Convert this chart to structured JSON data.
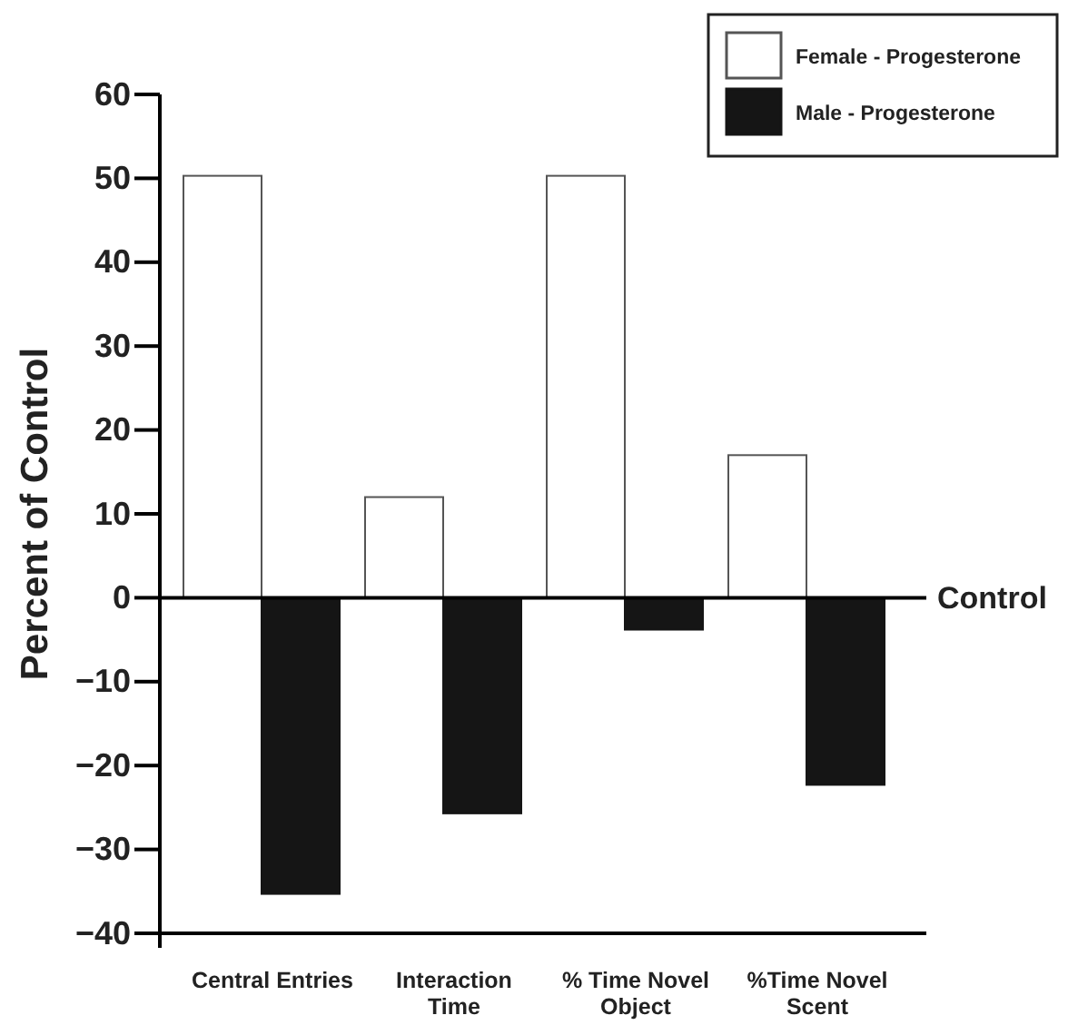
{
  "chart_data": {
    "type": "bar",
    "ylabel": "Percent of Control",
    "categories": [
      "Central Entries",
      "Interaction Time",
      "% Time Novel Object",
      "%Time Novel Scent"
    ],
    "series": [
      {
        "name": "Female - Progesterone",
        "color": "#ffffff",
        "values": [
          50.3,
          12,
          50.3,
          17
        ]
      },
      {
        "name": "Male - Progesterone",
        "color": "#151515",
        "values": [
          -35.3,
          -25.7,
          -3.8,
          -22.3
        ]
      }
    ],
    "ylim": [
      -40,
      60
    ],
    "yticks": [
      {
        "value": 60,
        "label": "60"
      },
      {
        "value": 50,
        "label": "50"
      },
      {
        "value": 40,
        "label": "40"
      },
      {
        "value": 30,
        "label": "30"
      },
      {
        "value": 20,
        "label": "20"
      },
      {
        "value": 10,
        "label": "10"
      },
      {
        "value": 0,
        "label": "0"
      },
      {
        "value": -10,
        "label": "−10"
      },
      {
        "value": -20,
        "label": "−20"
      },
      {
        "value": -30,
        "label": "−30"
      },
      {
        "value": -40,
        "label": "−40"
      }
    ],
    "ref_lines": [
      {
        "axis": "y",
        "value": 0,
        "label": "Control"
      }
    ],
    "legend": "top right",
    "grid": false
  }
}
